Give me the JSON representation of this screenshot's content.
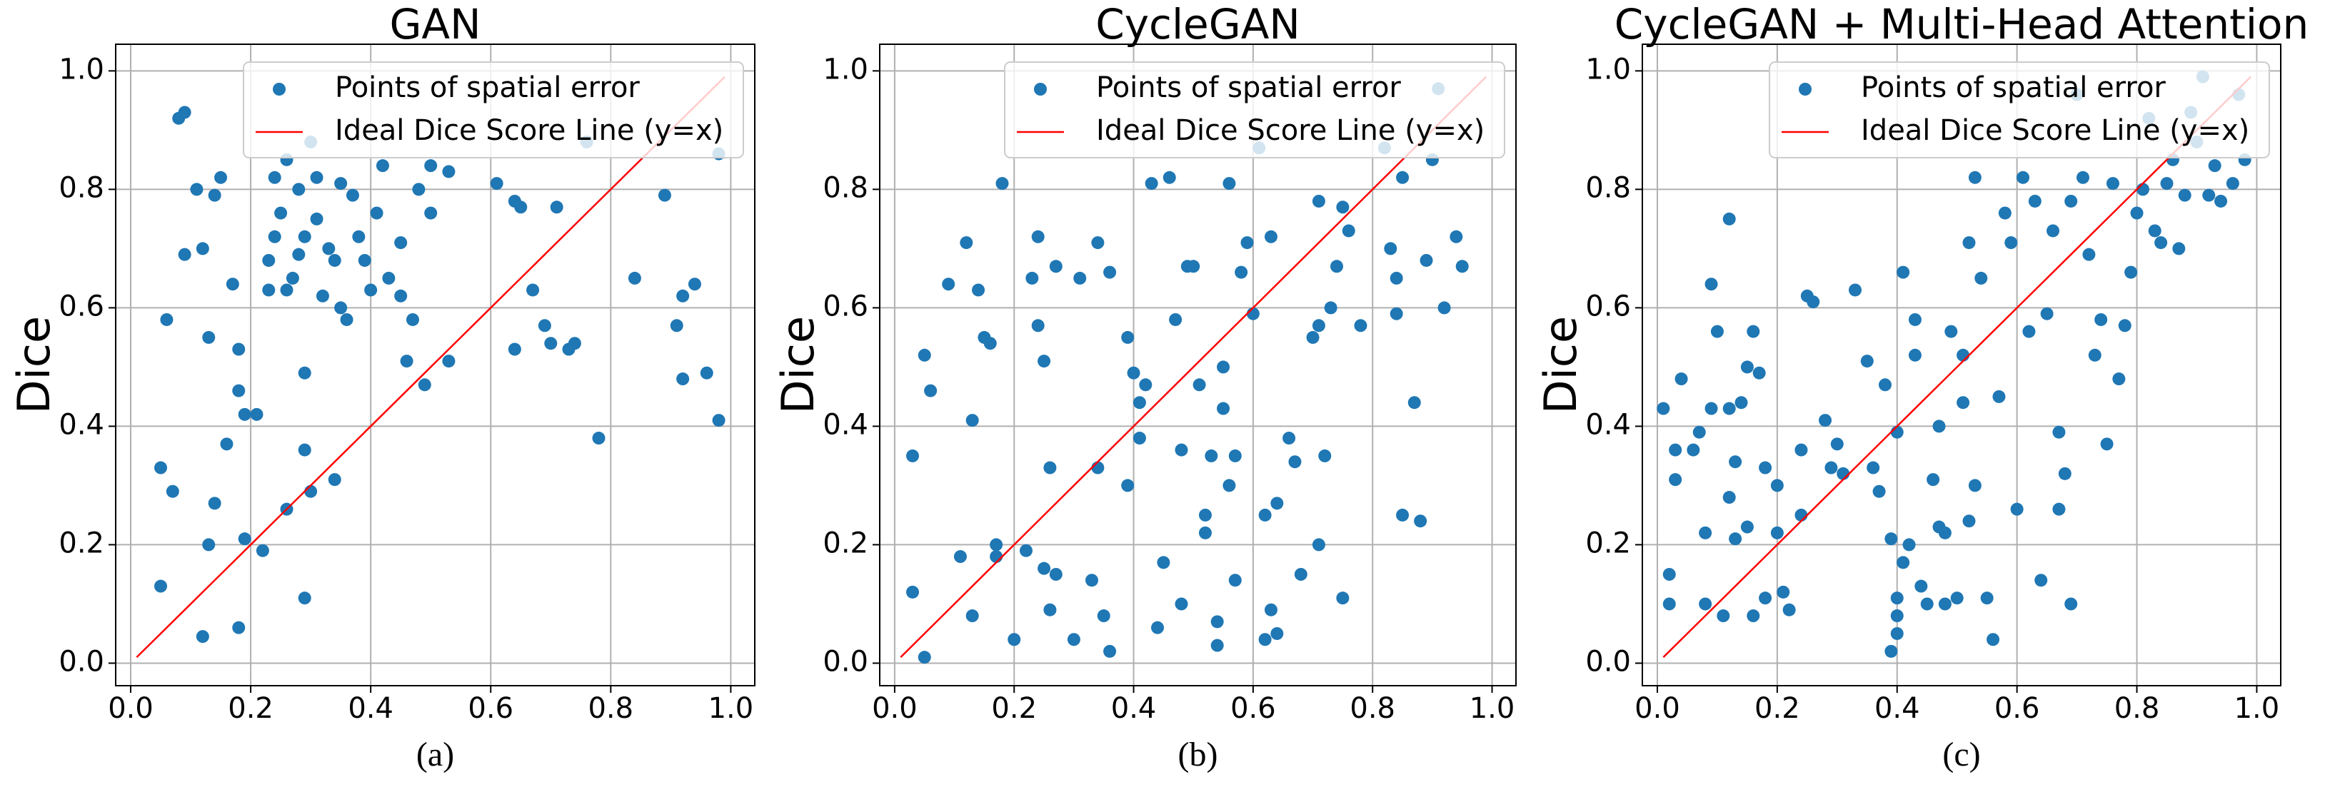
{
  "chart_data": [
    {
      "type": "scatter",
      "title": "GAN",
      "y_label": "Dice",
      "caption": "(a)",
      "xlim": [
        -0.025,
        1.04
      ],
      "ylim": [
        -0.038,
        1.045
      ],
      "xticks": [
        {
          "value": 0,
          "label": "0.0"
        },
        0.2,
        0.4,
        0.6,
        0.8,
        {
          "value": 1,
          "label": "1.0"
        }
      ],
      "yticks": [
        {
          "value": 0,
          "label": "0.0"
        },
        0.2,
        0.4,
        0.6,
        0.8,
        {
          "value": 1,
          "label": "1.0"
        }
      ],
      "grid": true,
      "legend": "upper right",
      "series": [
        {
          "name": "Points of spatial error",
          "type": "scatter",
          "color": "#1f77b4",
          "x": [
            0.08,
            0.09,
            0.06,
            0.05,
            0.07,
            0.05,
            0.12,
            0.09,
            0.11,
            0.12,
            0.14,
            0.15,
            0.13,
            0.14,
            0.13,
            0.16,
            0.17,
            0.18,
            0.18,
            0.19,
            0.18,
            0.19,
            0.21,
            0.22,
            0.23,
            0.23,
            0.24,
            0.25,
            0.26,
            0.26,
            0.27,
            0.28,
            0.28,
            0.29,
            0.29,
            0.29,
            0.3,
            0.3,
            0.29,
            0.31,
            0.32,
            0.33,
            0.34,
            0.34,
            0.35,
            0.35,
            0.36,
            0.37,
            0.38,
            0.39,
            0.4,
            0.41,
            0.42,
            0.43,
            0.45,
            0.45,
            0.46,
            0.47,
            0.48,
            0.49,
            0.5,
            0.5,
            0.53,
            0.53,
            0.61,
            0.64,
            0.64,
            0.65,
            0.67,
            0.69,
            0.7,
            0.71,
            0.73,
            0.74,
            0.76,
            0.78,
            0.84,
            0.89,
            0.91,
            0.92,
            0.92,
            0.94,
            0.96,
            0.98,
            0.98,
            0.24,
            0.26,
            0.31
          ],
          "values": [
            0.92,
            0.93,
            0.58,
            0.33,
            0.29,
            0.13,
            0.045,
            0.69,
            0.8,
            0.7,
            0.79,
            0.82,
            0.55,
            0.27,
            0.2,
            0.37,
            0.64,
            0.53,
            0.46,
            0.42,
            0.06,
            0.21,
            0.42,
            0.19,
            0.63,
            0.68,
            0.82,
            0.76,
            0.85,
            0.26,
            0.65,
            0.69,
            0.8,
            0.72,
            0.11,
            0.36,
            0.88,
            0.29,
            0.49,
            0.75,
            0.62,
            0.7,
            0.31,
            0.68,
            0.6,
            0.81,
            0.58,
            0.79,
            0.72,
            0.68,
            0.63,
            0.76,
            0.84,
            0.65,
            0.62,
            0.71,
            0.51,
            0.58,
            0.8,
            0.47,
            0.84,
            0.76,
            0.51,
            0.83,
            0.81,
            0.53,
            0.78,
            0.77,
            0.63,
            0.57,
            0.54,
            0.77,
            0.53,
            0.54,
            0.88,
            0.38,
            0.65,
            0.79,
            0.57,
            0.48,
            0.62,
            0.64,
            0.49,
            0.41,
            0.86,
            0.72,
            0.63,
            0.82
          ]
        },
        {
          "name": "Ideal Dice Score Line (y=x)",
          "type": "line",
          "color": "#ff0000",
          "x": [
            0.01,
            0.99
          ],
          "values": [
            0.01,
            0.99
          ]
        }
      ]
    },
    {
      "type": "scatter",
      "title": "CycleGAN",
      "y_label": "Dice",
      "caption": "(b)",
      "xlim": [
        -0.025,
        1.04
      ],
      "ylim": [
        -0.038,
        1.045
      ],
      "xticks": [
        {
          "value": 0,
          "label": "0.0"
        },
        0.2,
        0.4,
        0.6,
        0.8,
        {
          "value": 1,
          "label": "1.0"
        }
      ],
      "yticks": [
        {
          "value": 0,
          "label": "0.0"
        },
        0.2,
        0.4,
        0.6,
        0.8,
        {
          "value": 1,
          "label": "1.0"
        }
      ],
      "grid": true,
      "legend": "upper right",
      "series": [
        {
          "name": "Points of spatial error",
          "type": "scatter",
          "color": "#1f77b4",
          "x": [
            0.03,
            0.03,
            0.05,
            0.05,
            0.06,
            0.09,
            0.12,
            0.11,
            0.13,
            0.13,
            0.14,
            0.15,
            0.16,
            0.17,
            0.17,
            0.18,
            0.2,
            0.22,
            0.23,
            0.24,
            0.24,
            0.25,
            0.25,
            0.26,
            0.26,
            0.27,
            0.27,
            0.3,
            0.31,
            0.33,
            0.34,
            0.34,
            0.35,
            0.36,
            0.36,
            0.39,
            0.39,
            0.4,
            0.41,
            0.41,
            0.42,
            0.43,
            0.44,
            0.45,
            0.46,
            0.47,
            0.48,
            0.48,
            0.49,
            0.5,
            0.51,
            0.52,
            0.52,
            0.53,
            0.54,
            0.54,
            0.55,
            0.55,
            0.56,
            0.56,
            0.57,
            0.57,
            0.58,
            0.59,
            0.6,
            0.61,
            0.62,
            0.62,
            0.63,
            0.63,
            0.64,
            0.64,
            0.66,
            0.67,
            0.68,
            0.7,
            0.71,
            0.71,
            0.71,
            0.72,
            0.73,
            0.74,
            0.75,
            0.75,
            0.76,
            0.78,
            0.82,
            0.83,
            0.84,
            0.84,
            0.85,
            0.85,
            0.87,
            0.88,
            0.89,
            0.9,
            0.91,
            0.92,
            0.94,
            0.95
          ],
          "values": [
            0.12,
            0.35,
            0.01,
            0.52,
            0.46,
            0.64,
            0.71,
            0.18,
            0.08,
            0.41,
            0.63,
            0.55,
            0.54,
            0.18,
            0.2,
            0.81,
            0.04,
            0.19,
            0.65,
            0.72,
            0.57,
            0.16,
            0.51,
            0.33,
            0.09,
            0.15,
            0.67,
            0.04,
            0.65,
            0.14,
            0.71,
            0.33,
            0.08,
            0.02,
            0.66,
            0.55,
            0.3,
            0.49,
            0.44,
            0.38,
            0.47,
            0.81,
            0.06,
            0.17,
            0.82,
            0.58,
            0.1,
            0.36,
            0.67,
            0.67,
            0.47,
            0.25,
            0.22,
            0.35,
            0.03,
            0.07,
            0.5,
            0.43,
            0.81,
            0.3,
            0.14,
            0.35,
            0.66,
            0.71,
            0.59,
            0.87,
            0.04,
            0.25,
            0.72,
            0.09,
            0.05,
            0.27,
            0.38,
            0.34,
            0.15,
            0.55,
            0.78,
            0.2,
            0.57,
            0.35,
            0.6,
            0.67,
            0.77,
            0.11,
            0.73,
            0.57,
            0.87,
            0.7,
            0.59,
            0.65,
            0.82,
            0.25,
            0.44,
            0.24,
            0.68,
            0.85,
            0.97,
            0.6,
            0.72,
            0.67
          ]
        },
        {
          "name": "Ideal Dice Score Line (y=x)",
          "type": "line",
          "color": "#ff0000",
          "x": [
            0.01,
            0.99
          ],
          "values": [
            0.01,
            0.99
          ]
        }
      ]
    },
    {
      "type": "scatter",
      "title": "CycleGAN + Multi-Head Attention",
      "y_label": "Dice",
      "caption": "(c)",
      "xlim": [
        -0.025,
        1.04
      ],
      "ylim": [
        -0.038,
        1.045
      ],
      "xticks": [
        {
          "value": 0,
          "label": "0.0"
        },
        0.2,
        0.4,
        0.6,
        0.8,
        {
          "value": 1,
          "label": "1.0"
        }
      ],
      "yticks": [
        {
          "value": 0,
          "label": "0.0"
        },
        0.2,
        0.4,
        0.6,
        0.8,
        {
          "value": 1,
          "label": "1.0"
        }
      ],
      "grid": true,
      "legend": "upper right",
      "series": [
        {
          "name": "Points of spatial error",
          "type": "scatter",
          "color": "#1f77b4",
          "x": [
            0.01,
            0.02,
            0.02,
            0.03,
            0.03,
            0.04,
            0.06,
            0.07,
            0.08,
            0.08,
            0.09,
            0.09,
            0.1,
            0.11,
            0.12,
            0.12,
            0.12,
            0.13,
            0.13,
            0.14,
            0.15,
            0.15,
            0.16,
            0.16,
            0.17,
            0.18,
            0.18,
            0.2,
            0.2,
            0.21,
            0.22,
            0.24,
            0.24,
            0.25,
            0.26,
            0.28,
            0.29,
            0.3,
            0.31,
            0.33,
            0.35,
            0.36,
            0.37,
            0.38,
            0.39,
            0.39,
            0.4,
            0.4,
            0.4,
            0.4,
            0.41,
            0.41,
            0.42,
            0.43,
            0.43,
            0.44,
            0.45,
            0.46,
            0.47,
            0.47,
            0.48,
            0.48,
            0.49,
            0.5,
            0.51,
            0.51,
            0.52,
            0.52,
            0.53,
            0.53,
            0.54,
            0.55,
            0.56,
            0.57,
            0.58,
            0.59,
            0.6,
            0.61,
            0.62,
            0.63,
            0.64,
            0.65,
            0.66,
            0.67,
            0.67,
            0.68,
            0.69,
            0.69,
            0.7,
            0.71,
            0.72,
            0.73,
            0.74,
            0.75,
            0.76,
            0.77,
            0.78,
            0.79,
            0.8,
            0.81,
            0.82,
            0.83,
            0.84,
            0.85,
            0.86,
            0.87,
            0.88,
            0.89,
            0.9,
            0.91,
            0.92,
            0.93,
            0.94,
            0.96,
            0.98,
            0.97
          ],
          "values": [
            0.43,
            0.15,
            0.1,
            0.36,
            0.31,
            0.48,
            0.36,
            0.39,
            0.22,
            0.1,
            0.64,
            0.43,
            0.56,
            0.08,
            0.75,
            0.43,
            0.28,
            0.34,
            0.21,
            0.44,
            0.23,
            0.5,
            0.56,
            0.08,
            0.49,
            0.33,
            0.11,
            0.22,
            0.3,
            0.12,
            0.09,
            0.36,
            0.25,
            0.62,
            0.61,
            0.41,
            0.33,
            0.37,
            0.32,
            0.63,
            0.51,
            0.33,
            0.29,
            0.47,
            0.21,
            0.02,
            0.11,
            0.08,
            0.05,
            0.39,
            0.66,
            0.17,
            0.2,
            0.58,
            0.52,
            0.13,
            0.1,
            0.31,
            0.4,
            0.23,
            0.1,
            0.22,
            0.56,
            0.11,
            0.52,
            0.44,
            0.71,
            0.24,
            0.3,
            0.82,
            0.65,
            0.11,
            0.04,
            0.45,
            0.76,
            0.71,
            0.26,
            0.82,
            0.56,
            0.78,
            0.14,
            0.59,
            0.73,
            0.26,
            0.39,
            0.32,
            0.1,
            0.78,
            0.96,
            0.82,
            0.69,
            0.52,
            0.58,
            0.37,
            0.81,
            0.48,
            0.57,
            0.66,
            0.76,
            0.8,
            0.92,
            0.73,
            0.71,
            0.81,
            0.85,
            0.7,
            0.79,
            0.93,
            0.88,
            0.99,
            0.79,
            0.84,
            0.78,
            0.81,
            0.85,
            0.96
          ]
        },
        {
          "name": "Ideal Dice Score Line (y=x)",
          "type": "line",
          "color": "#ff0000",
          "x": [
            0.01,
            0.99
          ],
          "values": [
            0.01,
            0.99
          ]
        }
      ]
    }
  ]
}
